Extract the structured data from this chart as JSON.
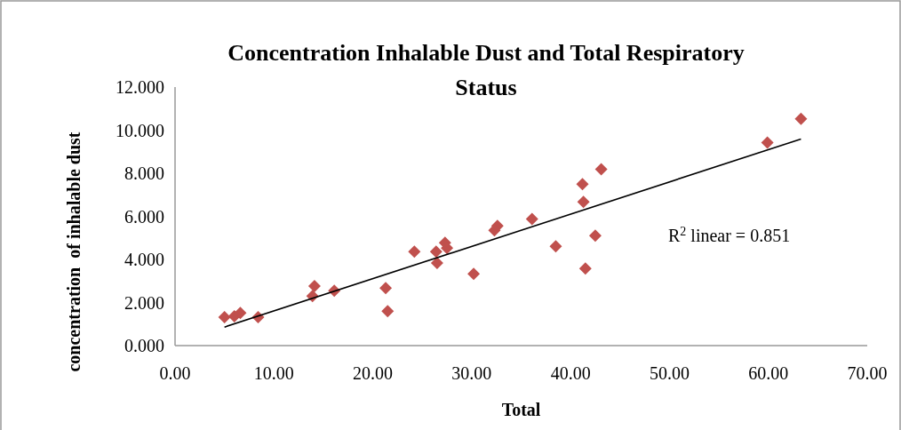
{
  "chart_data": {
    "type": "scatter",
    "title": "Concentration Inhalable Dust and Total Respiratory Status",
    "xlabel": "Total",
    "ylabel": "concentration  of inhalable dust",
    "xlim": [
      0,
      70
    ],
    "xticks": [
      {
        "value": 0,
        "label": "0.00"
      },
      {
        "value": 10,
        "label": "10.00"
      },
      {
        "value": 20,
        "label": "20.00"
      },
      {
        "value": 30,
        "label": "30.00"
      },
      {
        "value": 40,
        "label": "40.00"
      },
      {
        "value": 50,
        "label": "50.00"
      },
      {
        "value": 60,
        "label": "60.00"
      },
      {
        "value": 70,
        "label": "70.00"
      }
    ],
    "ylim": [
      0,
      12
    ],
    "yticks": [
      {
        "value": 0,
        "label": "0.000"
      },
      {
        "value": 2,
        "label": "2.000"
      },
      {
        "value": 4,
        "label": "4.000"
      },
      {
        "value": 6,
        "label": "6.000"
      },
      {
        "value": 8,
        "label": "8.000"
      },
      {
        "value": 10,
        "label": "10.000"
      },
      {
        "value": 12,
        "label": "12.000"
      }
    ],
    "grid": false,
    "marker": "diamond",
    "annotations": [
      "R$^{2}$ linear = 0.851"
    ],
    "series": [
      {
        "color": "#c0504d",
        "x": [
          5.0,
          6.0,
          6.6,
          8.4,
          13.9,
          14.1,
          16.1,
          21.3,
          21.5,
          24.2,
          26.5,
          26.4,
          27.3,
          27.5,
          30.2,
          32.6,
          32.3,
          36.1,
          38.5,
          41.2,
          41.3,
          41.5,
          42.5,
          43.1,
          59.9,
          63.3
        ],
        "values": [
          1.32,
          1.36,
          1.52,
          1.32,
          2.3,
          2.76,
          2.55,
          2.67,
          1.6,
          4.36,
          3.83,
          4.36,
          4.77,
          4.53,
          3.33,
          5.56,
          5.35,
          5.88,
          4.61,
          7.49,
          6.67,
          3.58,
          5.1,
          8.19,
          9.42,
          10.53
        ]
      },
      {
        "type": "line",
        "color": "#000000",
        "x": [
          5.0,
          63.3
        ],
        "values": [
          0.86,
          9.59
        ],
        "marker": "none"
      }
    ]
  }
}
